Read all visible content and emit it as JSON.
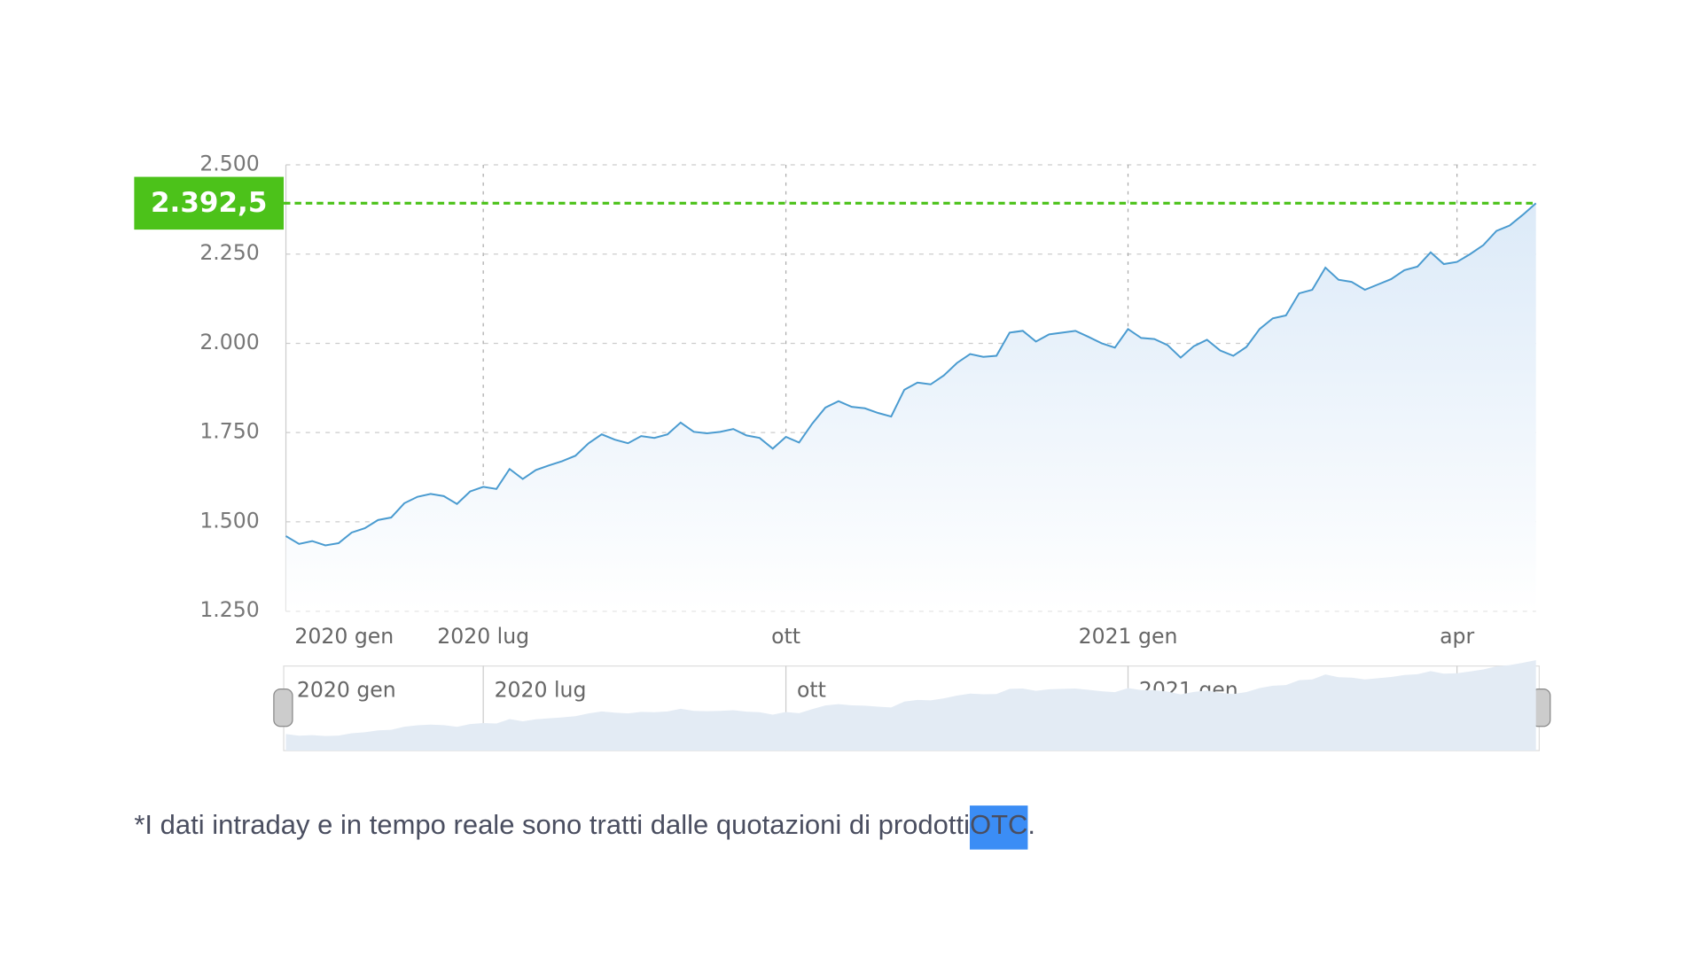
{
  "chart_data": {
    "type": "line",
    "categories": [
      "2020 gen",
      null,
      null,
      null,
      null,
      null,
      null,
      null,
      null,
      null,
      null,
      null,
      null,
      null,
      null,
      "2020 lug",
      null,
      null,
      null,
      null,
      null,
      null,
      null,
      null,
      null,
      null,
      null,
      null,
      null,
      null,
      null,
      null,
      null,
      null,
      null,
      null,
      null,
      null,
      "ott",
      null,
      null,
      null,
      null,
      null,
      null,
      null,
      null,
      null,
      null,
      null,
      null,
      null,
      null,
      null,
      null,
      null,
      null,
      null,
      null,
      null,
      null,
      null,
      null,
      null,
      "2021 gen",
      null,
      null,
      null,
      null,
      null,
      null,
      null,
      null,
      null,
      null,
      null,
      null,
      null,
      null,
      null,
      null,
      null,
      null,
      null,
      null,
      null,
      null,
      null,
      null,
      "apr",
      null,
      null,
      null,
      null,
      null,
      null
    ],
    "series": [
      {
        "color": "#4a9bd0",
        "values": [
          1460,
          1438,
          1446,
          1434,
          1440,
          1470,
          1482,
          1505,
          1512,
          1552,
          1570,
          1578,
          1572,
          1550,
          1585,
          1598,
          1592,
          1648,
          1620,
          1645,
          1658,
          1670,
          1685,
          1720,
          1745,
          1730,
          1720,
          1740,
          1735,
          1745,
          1778,
          1752,
          1748,
          1752,
          1760,
          1742,
          1735,
          1705,
          1738,
          1722,
          1775,
          1820,
          1838,
          1822,
          1818,
          1805,
          1795,
          1870,
          1890,
          1885,
          1910,
          1945,
          1970,
          1962,
          1965,
          2030,
          2035,
          2005,
          2025,
          2030,
          2035,
          2018,
          2000,
          1988,
          2040,
          2015,
          2012,
          1995,
          1960,
          1992,
          2010,
          1980,
          1965,
          1990,
          2040,
          2070,
          2078,
          2140,
          2150,
          2212,
          2178,
          2172,
          2150,
          2165,
          2180,
          2205,
          2215,
          2255,
          2222,
          2228,
          2250,
          2275,
          2315,
          2330,
          2360,
          2392.5
        ]
      }
    ],
    "ylim": [
      1250,
      2500
    ],
    "yticks": [
      {
        "value": 1250,
        "label": "1.250"
      },
      {
        "value": 1500,
        "label": "1.500"
      },
      {
        "value": 1750,
        "label": "1.750"
      },
      {
        "value": 2000,
        "label": "2.000"
      },
      {
        "value": 2250,
        "label": "2.250"
      },
      {
        "value": 2500,
        "label": "2.500"
      }
    ],
    "grid": true,
    "last_price": {
      "value": 2392.5,
      "label": "2.392,5",
      "color": "#4cc21a"
    }
  },
  "footnote": {
    "text": "*I dati intraday e in tempo reale sono tratti dalle quotazioni di prodotti ",
    "link": "OTC",
    "end": "."
  }
}
